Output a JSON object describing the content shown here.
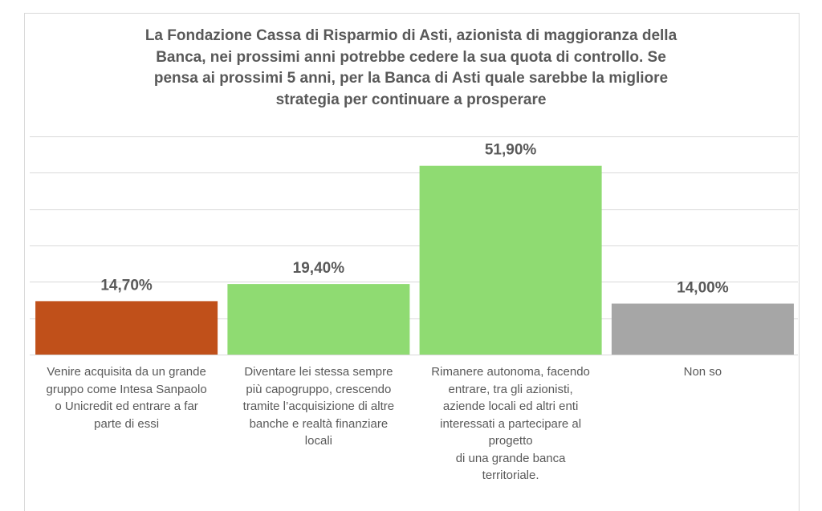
{
  "chart_data": {
    "type": "bar",
    "title_lines": [
      "La Fondazione Cassa di Risparmio di Asti, azionista di maggioranza della",
      "Banca, nei prossimi anni potrebbe cedere la sua quota di controllo. Se",
      "pensa ai prossimi 5 anni, per la Banca di Asti quale sarebbe la migliore",
      "strategia per continuare a prosperare"
    ],
    "categories": [
      {
        "lines": [
          "Venire acquisita da un grande",
          "gruppo come Intesa Sanpaolo",
          "o Unicredit ed entrare a far",
          "parte di essi"
        ],
        "color": "#C0501A"
      },
      {
        "lines": [
          "Diventare lei stessa sempre",
          "più capogruppo, crescendo",
          "tramite l’acquisizione di altre",
          "banche e realtà finanziare",
          "locali"
        ],
        "color": "#8FDB72"
      },
      {
        "lines": [
          "Rimanere autonoma, facendo",
          "entrare, tra gli azionisti,",
          "aziende locali ed altri enti",
          "interessati a partecipare al",
          "progetto",
          "di una grande banca",
          "territoriale."
        ],
        "color": "#8FDB72"
      },
      {
        "lines": [
          "Non so"
        ],
        "color": "#A6A6A6"
      }
    ],
    "values": [
      14.7,
      19.4,
      51.9,
      14.0
    ],
    "value_labels": [
      "14,70%",
      "19,40%",
      "51,90%",
      "14,00%"
    ],
    "ylim": [
      0,
      60
    ],
    "grid": true,
    "legend": "none",
    "colors": {
      "gridline": "#d9d9d9",
      "text": "#595959",
      "border": "#d9d9d9"
    }
  }
}
